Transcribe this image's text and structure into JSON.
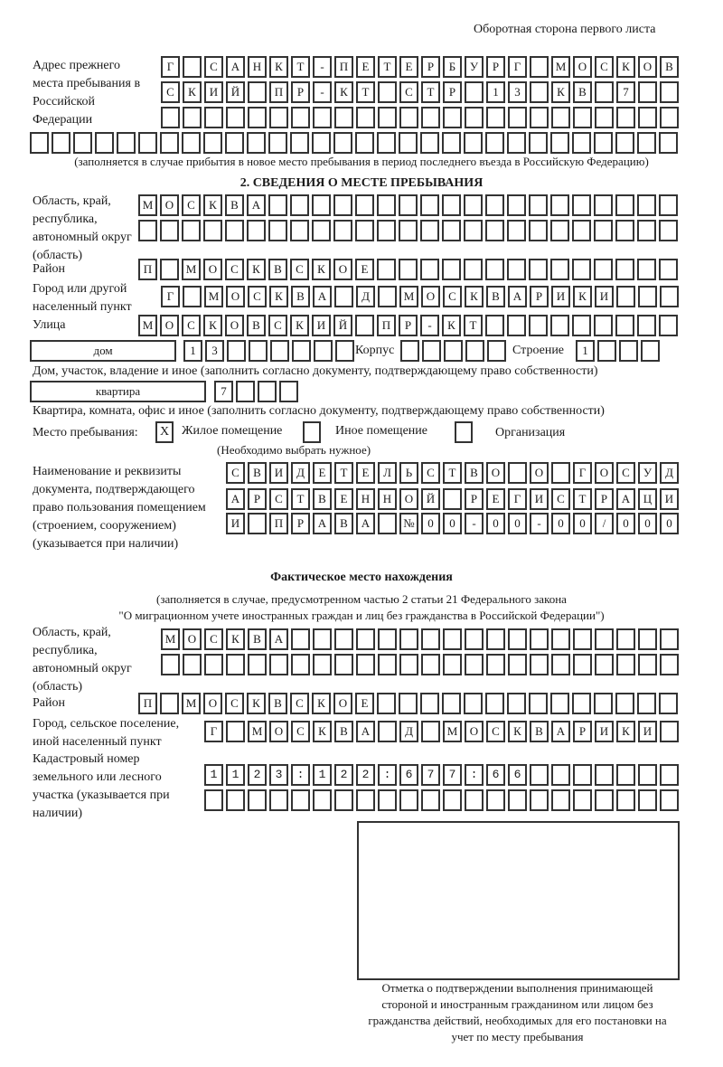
{
  "header": {
    "page_side": "Оборотная сторона первого листа"
  },
  "previous_address": {
    "label": "Адрес прежнего места пребывания в Российской Федерации",
    "rows": [
      "Г САНКТ-ПЕТЕРБУРГ МОСКОВ",
      "СКИЙ ПР-КТ СТР 13 КВ 7",
      "",
      ""
    ],
    "note": "(заполняется в случае прибытия в новое место пребывания в период последнего въезда в Российскую Федерацию)"
  },
  "stay": {
    "title": "2. СВЕДЕНИЯ О МЕСТЕ ПРЕБЫВАНИЯ",
    "region_label": "Область, край, республика, автономный округ (область)",
    "region_rows": [
      "МОСКВА",
      ""
    ],
    "district_label": "Район",
    "district": "П МОСКВСКОЕ",
    "city_label": "Город или другой населенный пункт",
    "city": "Г МОСКВА Д МОСКВАРИКИ",
    "street_label": "Улица",
    "street": "МОСКОВСКИЙ ПР-КТ",
    "house_type": "дом",
    "house_number": "13",
    "korpus_label": "Корпус",
    "korpus": "",
    "building_label": "Строение",
    "building": "1",
    "house_note": "Дом, участок, владение и иное (заполнить согласно документу, подтверждающему право собственности)",
    "flat_type": "квартира",
    "flat_number": "7",
    "flat_note": "Квартира, комната, офис и иное (заполнить согласно документу, подтверждающему право собственности)",
    "place_label": "Место пребывания:",
    "place_options": [
      {
        "label": "Жилое помещение",
        "checked": true,
        "mark": "X"
      },
      {
        "label": "Иное помещение",
        "checked": false,
        "mark": ""
      },
      {
        "label": "Организация",
        "checked": false,
        "mark": ""
      }
    ],
    "place_note": "(Необходимо выбрать нужное)",
    "document_label": "Наименование и реквизиты документа, подтверждающего право пользования помещением (строением, сооружением) (указывается при наличии)",
    "document_rows": [
      "СВИДЕТЕЛЬСТВО О ГОСУД",
      "АРСТВЕННОЙ РЕГИСТРАЦИ",
      "И ПРАВА №00-00-00/000"
    ]
  },
  "actual": {
    "title": "Фактическое место нахождения",
    "note_line1": "(заполняется в случае, предусмотренном частью 2 статьи 21 Федерального закона",
    "note_line2": "\"О миграционном учете иностранных граждан и лиц без гражданства в Российской Федерации\")",
    "region_label": "Область, край, республика, автономный округ (область)",
    "region_rows": [
      "МОСКВА",
      ""
    ],
    "district_label": "Район",
    "district": "П МОСКВСКОЕ",
    "city_label": "Город, сельское поселение, иной населенный пункт",
    "city": "Г МОСКВА Д МОСКВАРИКИ",
    "cadastral_label": "Кадастровый номер земельного или лесного участка (указывается при наличии)",
    "cadastral_rows": [
      "1123:122:677:66",
      ""
    ]
  },
  "stamp": {
    "caption": "Отметка о подтверждении выполнения принимающей стороной и иностранным гражданином или лицом без гражданства действий, необходимых для его постановки на учет по месту пребывания"
  }
}
